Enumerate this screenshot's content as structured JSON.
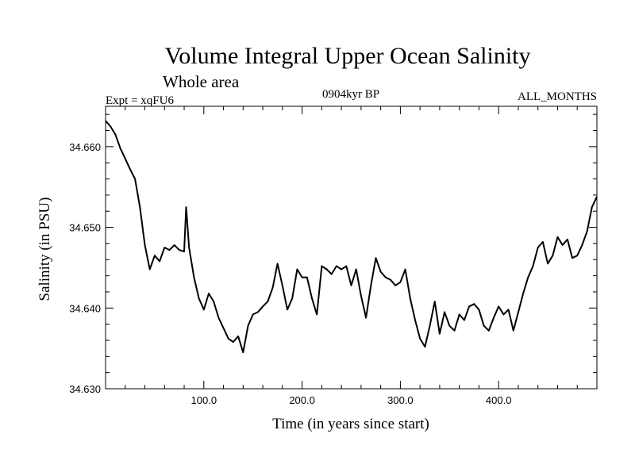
{
  "chart_data": {
    "type": "line",
    "title": "Volume Integral Upper Ocean Salinity",
    "subtitle": "Whole area",
    "left_label": "Expt = xqFU6",
    "center_label": "0904kyr BP",
    "right_label": "ALL_MONTHS",
    "xlabel": "Time (in years since start)",
    "ylabel": "Salinity (in PSU)",
    "xlim": [
      0,
      500
    ],
    "ylim": [
      34.63,
      34.665
    ],
    "x_ticks": [
      100,
      200,
      300,
      400
    ],
    "x_tick_labels": [
      "100.0",
      "200.0",
      "300.0",
      "400.0"
    ],
    "y_ticks": [
      34.63,
      34.64,
      34.65,
      34.66
    ],
    "y_tick_labels": [
      "34.630",
      "34.640",
      "34.650",
      "34.660"
    ],
    "grid": false,
    "series": [
      {
        "name": "salinity",
        "color": "#000000",
        "x": [
          0,
          5,
          10,
          15,
          20,
          25,
          30,
          35,
          40,
          45,
          50,
          55,
          60,
          65,
          70,
          75,
          80,
          82,
          85,
          90,
          95,
          100,
          105,
          110,
          115,
          120,
          125,
          130,
          135,
          140,
          145,
          150,
          155,
          160,
          165,
          170,
          175,
          180,
          185,
          190,
          195,
          200,
          205,
          210,
          215,
          220,
          225,
          230,
          235,
          240,
          245,
          250,
          255,
          260,
          265,
          270,
          275,
          280,
          285,
          290,
          295,
          300,
          305,
          310,
          315,
          320,
          325,
          330,
          335,
          340,
          345,
          350,
          355,
          360,
          365,
          370,
          375,
          380,
          385,
          390,
          395,
          400,
          405,
          410,
          415,
          420,
          425,
          430,
          435,
          440,
          445,
          450,
          455,
          460,
          465,
          470,
          475,
          480,
          485,
          490,
          495,
          500
        ],
        "y": [
          34.6632,
          34.6625,
          34.6615,
          34.6598,
          34.6585,
          34.6572,
          34.656,
          34.6525,
          34.6478,
          34.6448,
          34.6465,
          34.6458,
          34.6475,
          34.6472,
          34.6478,
          34.6472,
          34.647,
          34.6525,
          34.6475,
          34.6438,
          34.6412,
          34.6398,
          34.6418,
          34.6408,
          34.6388,
          34.6375,
          34.6362,
          34.6358,
          34.6365,
          34.6345,
          34.6378,
          34.6392,
          34.6395,
          34.6402,
          34.6408,
          34.6425,
          34.6455,
          34.6428,
          34.6398,
          34.6412,
          34.6448,
          34.6438,
          34.6438,
          34.6412,
          34.6392,
          34.6452,
          34.6448,
          34.6442,
          34.6452,
          34.6448,
          34.6452,
          34.6428,
          34.6448,
          34.6415,
          34.6388,
          34.6428,
          34.6462,
          34.6445,
          34.6438,
          34.6435,
          34.6428,
          34.6432,
          34.6448,
          34.6412,
          34.6385,
          34.6362,
          34.6352,
          34.6378,
          34.6408,
          34.6368,
          34.6395,
          34.6378,
          34.6372,
          34.6392,
          34.6385,
          34.6402,
          34.6405,
          34.6398,
          34.6378,
          34.6372,
          34.6388,
          34.6402,
          34.6392,
          34.6398,
          34.6372,
          34.6395,
          34.6418,
          34.6438,
          34.6452,
          34.6475,
          34.6482,
          34.6455,
          34.6465,
          34.6488,
          34.6478,
          34.6485,
          34.6462,
          34.6465,
          34.6478,
          34.6495,
          34.6525,
          34.6538
        ]
      }
    ]
  }
}
